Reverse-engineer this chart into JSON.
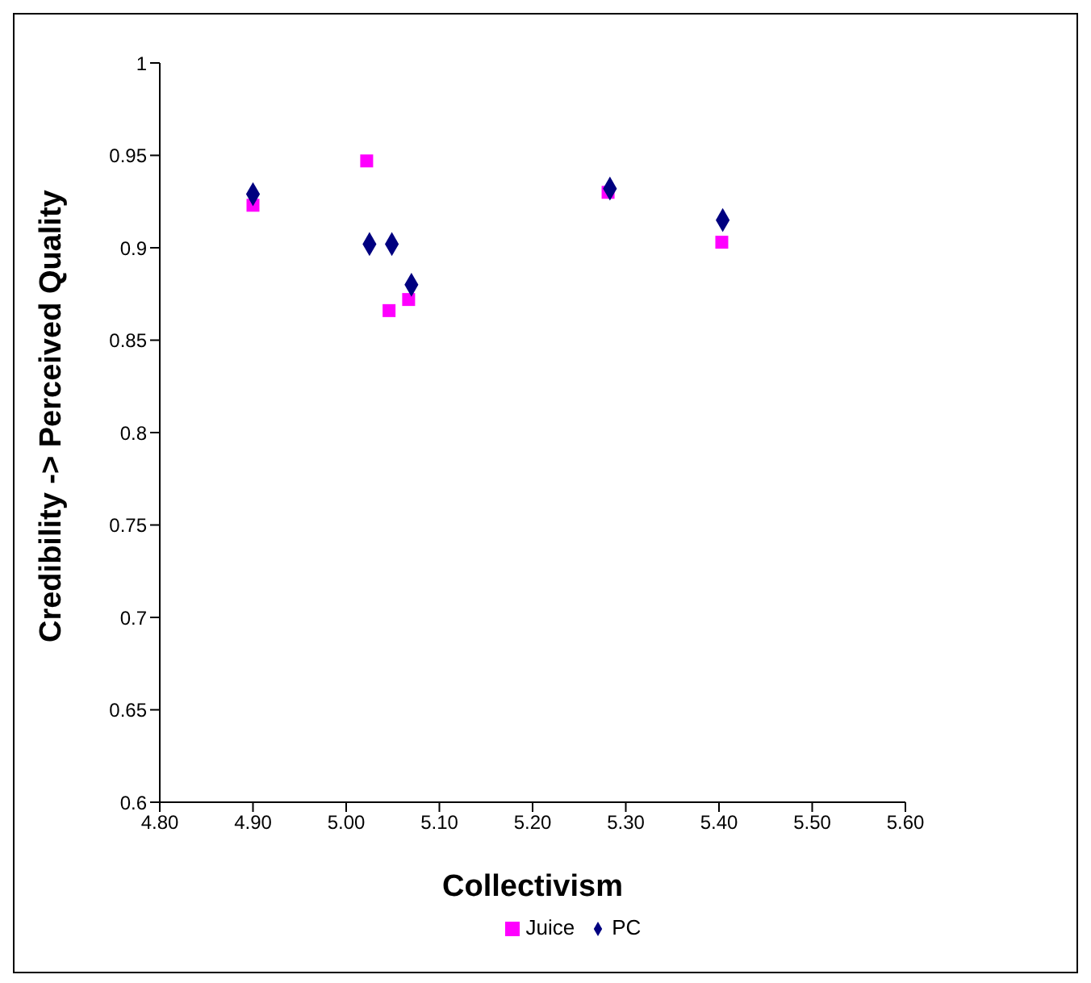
{
  "chart_data": {
    "type": "scatter",
    "xlabel": "Collectivism",
    "ylabel": "Credibility -> Perceived Quality",
    "x": [
      4.9,
      5.025,
      5.049,
      5.07,
      5.283,
      5.404
    ],
    "series": [
      {
        "name": "PC",
        "color": "#000080",
        "marker": "diamond",
        "values": [
          0.929,
          0.902,
          0.902,
          0.88,
          0.932,
          0.915
        ]
      },
      {
        "name": "Juice",
        "color": "#ff00ff",
        "marker": "square",
        "x": [
          4.9,
          5.022,
          5.046,
          5.067,
          5.281,
          5.403
        ],
        "values": [
          0.923,
          0.947,
          0.866,
          0.872,
          0.93,
          0.903
        ]
      }
    ],
    "xlim": [
      4.8,
      5.6
    ],
    "xticks": [
      {
        "value": 4.8,
        "label": "4.80"
      },
      {
        "value": 4.9,
        "label": "4.90"
      },
      {
        "value": 5.0,
        "label": "5.00"
      },
      {
        "value": 5.1,
        "label": "5.10"
      },
      {
        "value": 5.2,
        "label": "5.20"
      },
      {
        "value": 5.3,
        "label": "5.30"
      },
      {
        "value": 5.4,
        "label": "5.40"
      },
      {
        "value": 5.5,
        "label": "5.50"
      },
      {
        "value": 5.6,
        "label": "5.60"
      }
    ],
    "ylim": [
      0.6,
      1
    ],
    "yticks": [
      0.6,
      0.65,
      0.7,
      0.75,
      0.8,
      0.85,
      0.9,
      0.95,
      1
    ],
    "grid": false,
    "legend": "bottom"
  }
}
